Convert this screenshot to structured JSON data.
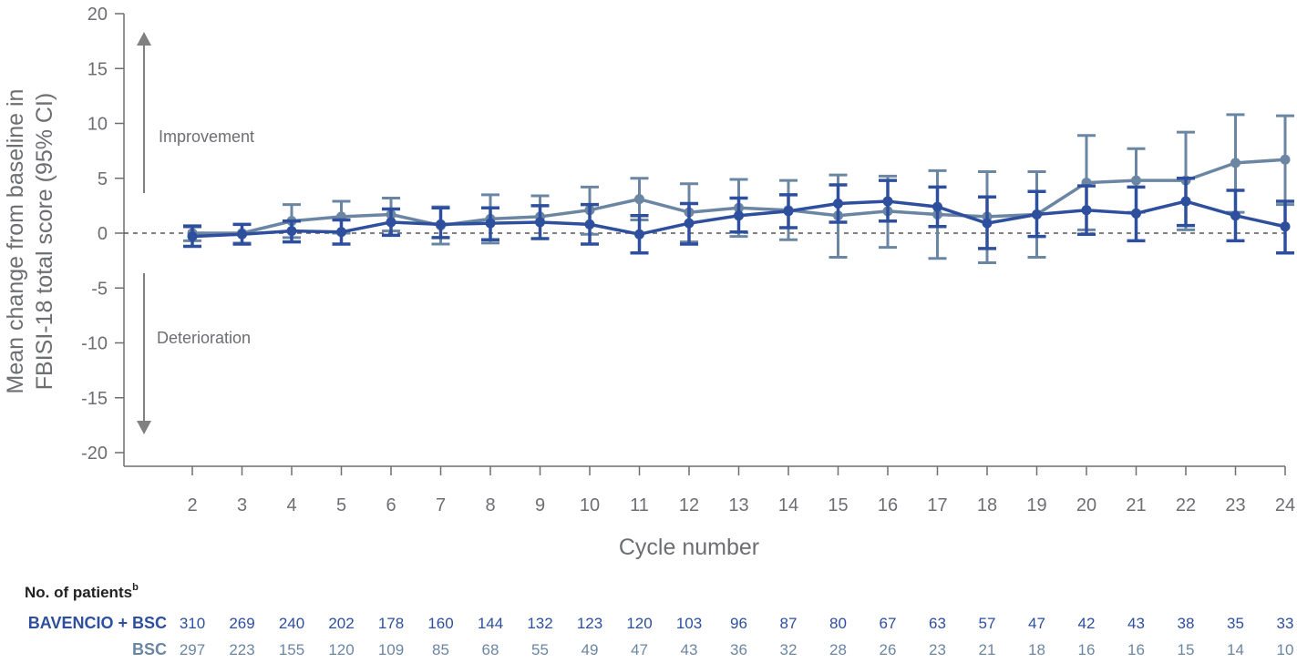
{
  "chart_data": {
    "type": "line",
    "ylabel_line1": "Mean change from baseline in",
    "ylabel_line2": "FBISI-18 total score (95% CI)",
    "xlabel": "Cycle number",
    "ylim": [
      -20,
      20
    ],
    "yticks": [
      "20",
      "15",
      "10",
      "5",
      "0",
      "-5",
      "-10",
      "-15",
      "-20"
    ],
    "ytick_values": [
      20,
      15,
      10,
      5,
      0,
      -5,
      -10,
      -15,
      -20
    ],
    "x": [
      2,
      3,
      4,
      5,
      6,
      7,
      8,
      9,
      10,
      11,
      12,
      13,
      14,
      15,
      16,
      17,
      18,
      19,
      20,
      21,
      22,
      23,
      24
    ],
    "xtick_labels": [
      "2",
      "3",
      "4",
      "5",
      "6",
      "7",
      "8",
      "9",
      "10",
      "11",
      "12",
      "13",
      "14",
      "15",
      "16",
      "17",
      "18",
      "19",
      "20",
      "21",
      "22",
      "23",
      "24"
    ],
    "annotations": {
      "improvement": "Improvement",
      "deterioration": "Deterioration"
    },
    "reference_line": 0,
    "series": [
      {
        "key": "bsc",
        "color": "#6b86a3",
        "values": [
          0.0,
          0.0,
          1.1,
          1.5,
          1.7,
          0.7,
          1.3,
          1.5,
          2.1,
          3.1,
          1.9,
          2.3,
          2.1,
          1.6,
          2.0,
          1.7,
          1.5,
          1.7,
          4.6,
          4.8,
          4.8,
          6.4,
          6.7
        ],
        "ci_low": [
          -0.7,
          -0.9,
          -0.4,
          0.0,
          0.2,
          -1.0,
          -0.9,
          -0.5,
          -0.1,
          1.2,
          -0.8,
          -0.3,
          -0.6,
          -2.2,
          -1.3,
          -2.3,
          -2.7,
          -2.2,
          0.3,
          1.9,
          0.3,
          1.9,
          2.6
        ],
        "ci_high": [
          0.7,
          0.8,
          2.6,
          2.9,
          3.2,
          2.4,
          3.5,
          3.4,
          4.2,
          5.0,
          4.5,
          4.9,
          4.8,
          5.3,
          5.2,
          5.7,
          5.6,
          5.6,
          8.9,
          7.7,
          9.2,
          10.8,
          10.7
        ]
      },
      {
        "key": "bavencio",
        "color": "#2e4f9e",
        "values": [
          -0.3,
          -0.1,
          0.2,
          0.1,
          1.0,
          0.8,
          0.9,
          1.0,
          0.8,
          -0.1,
          0.9,
          1.6,
          2.0,
          2.7,
          2.9,
          2.4,
          0.9,
          1.7,
          2.1,
          1.8,
          2.9,
          1.6,
          0.6
        ],
        "ci_low": [
          -1.2,
          -1.0,
          -0.8,
          -1.0,
          -0.2,
          -0.4,
          -0.6,
          -0.5,
          -1.0,
          -1.8,
          -1.0,
          0.1,
          0.5,
          1.0,
          1.1,
          0.6,
          -1.4,
          -0.3,
          -0.1,
          -0.7,
          0.7,
          -0.7,
          -1.8
        ],
        "ci_high": [
          0.6,
          0.8,
          1.1,
          1.2,
          2.2,
          2.3,
          2.3,
          2.5,
          2.6,
          1.6,
          2.7,
          3.2,
          3.5,
          4.4,
          4.8,
          4.2,
          3.3,
          3.8,
          4.3,
          4.2,
          5.0,
          3.9,
          2.9
        ]
      }
    ]
  },
  "patients": {
    "header": "No. of patients",
    "header_sup": "b",
    "rows": [
      {
        "label": "BAVENCIO + BSC",
        "color": "#2e4f9e",
        "counts": [
          "310",
          "269",
          "240",
          "202",
          "178",
          "160",
          "144",
          "132",
          "123",
          "120",
          "103",
          "96",
          "87",
          "80",
          "67",
          "63",
          "57",
          "47",
          "42",
          "43",
          "38",
          "35",
          "33"
        ]
      },
      {
        "label": "BSC",
        "color": "#6b86a3",
        "counts": [
          "297",
          "223",
          "155",
          "120",
          "109",
          "85",
          "68",
          "55",
          "49",
          "47",
          "43",
          "36",
          "32",
          "28",
          "26",
          "23",
          "21",
          "18",
          "16",
          "16",
          "15",
          "14",
          "10"
        ]
      }
    ]
  },
  "colors": {
    "axis": "#6d6e71",
    "arrow": "#808080",
    "zero_line": "#555555"
  }
}
